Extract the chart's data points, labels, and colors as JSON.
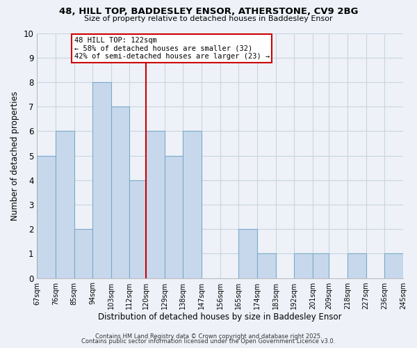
{
  "title_line1": "48, HILL TOP, BADDESLEY ENSOR, ATHERSTONE, CV9 2BG",
  "title_line2": "Size of property relative to detached houses in Baddesley Ensor",
  "xlabel": "Distribution of detached houses by size in Baddesley Ensor",
  "ylabel": "Number of detached properties",
  "bin_labels": [
    "67sqm",
    "76sqm",
    "85sqm",
    "94sqm",
    "103sqm",
    "112sqm",
    "120sqm",
    "129sqm",
    "138sqm",
    "147sqm",
    "156sqm",
    "165sqm",
    "174sqm",
    "183sqm",
    "192sqm",
    "201sqm",
    "209sqm",
    "218sqm",
    "227sqm",
    "236sqm",
    "245sqm"
  ],
  "bin_edges": [
    67,
    76,
    85,
    94,
    103,
    112,
    120,
    129,
    138,
    147,
    156,
    165,
    174,
    183,
    192,
    201,
    209,
    218,
    227,
    236,
    245
  ],
  "values": [
    5,
    6,
    2,
    8,
    7,
    4,
    6,
    5,
    6,
    0,
    0,
    2,
    1,
    0,
    1,
    1,
    0,
    1,
    0,
    1
  ],
  "bar_color": "#c8d8ec",
  "bar_edge_color": "#7aaac8",
  "grid_color": "#c8d4e0",
  "reference_line_x": 120,
  "reference_line_color": "#cc0000",
  "annotation_text_line1": "48 HILL TOP: 122sqm",
  "annotation_text_line2": "← 58% of detached houses are smaller (32)",
  "annotation_text_line3": "42% of semi-detached houses are larger (23) →",
  "annotation_box_color": "#ffffff",
  "annotation_box_edge_color": "#cc0000",
  "ylim": [
    0,
    10
  ],
  "yticks": [
    0,
    1,
    2,
    3,
    4,
    5,
    6,
    7,
    8,
    9,
    10
  ],
  "footer_line1": "Contains HM Land Registry data © Crown copyright and database right 2025.",
  "footer_line2": "Contains public sector information licensed under the Open Government Licence v3.0.",
  "background_color": "#eef2f8",
  "plot_bg_color": "#eef2f8"
}
